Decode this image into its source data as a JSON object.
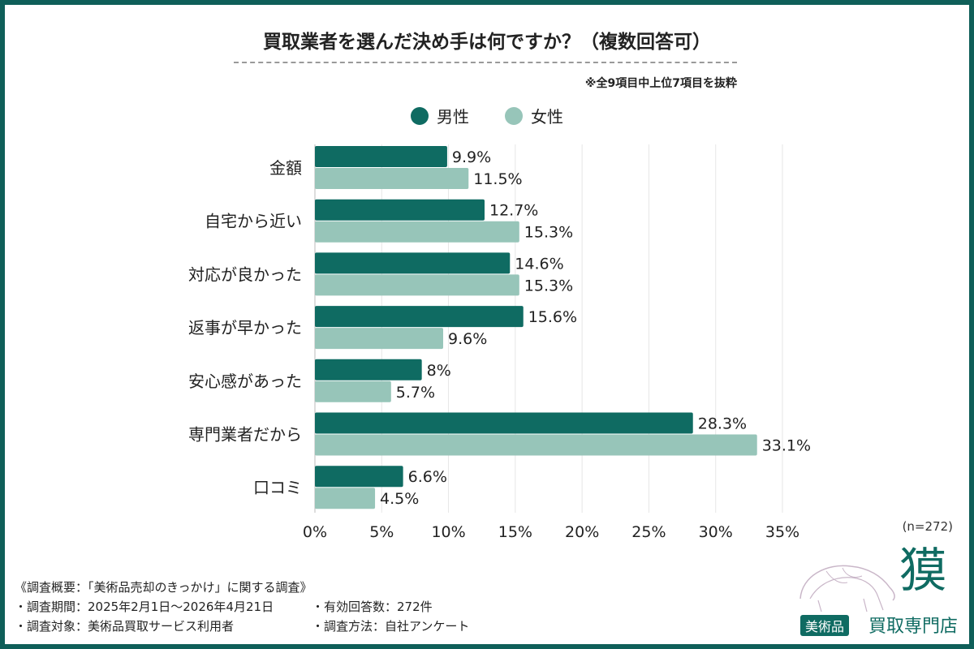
{
  "title": "買取業者を選んだ決め手は何ですか？（複数回答可）",
  "note": "※全9項目中上位7項目を抜粋",
  "sample": "(n=272)",
  "colors": {
    "male": "#0f6b62",
    "female": "#97c5b9",
    "frame": "#0f5f59"
  },
  "survey": {
    "heading": "《調査概要：「美術品売却のきっかけ」に関する調査》",
    "period": "・調査期間：2025年2月1日〜2026年4月21日",
    "responses": "・有効回答数：272件",
    "target": "・調査対象：美術品買取サービス利用者",
    "method": "・調査方法：自社アンケート"
  },
  "logo": {
    "kanji": "獏",
    "badge": "美術品",
    "text": "買取専門店"
  },
  "chart_data": {
    "type": "bar",
    "orientation": "horizontal",
    "title": "買取業者を選んだ決め手は何ですか？（複数回答可）",
    "categories": [
      "金額",
      "自宅から近い",
      "対応が良かった",
      "返事が早かった",
      "安心感があった",
      "専門業者だから",
      "口コミ"
    ],
    "series": [
      {
        "name": "男性",
        "values": [
          9.9,
          12.7,
          14.6,
          15.6,
          8,
          28.3,
          6.6
        ],
        "labels": [
          "9.9%",
          "12.7%",
          "14.6%",
          "15.6%",
          "8%",
          "28.3%",
          "6.6%"
        ]
      },
      {
        "name": "女性",
        "values": [
          11.5,
          15.3,
          15.3,
          9.6,
          5.7,
          33.1,
          4.5
        ],
        "labels": [
          "11.5%",
          "15.3%",
          "15.3%",
          "9.6%",
          "5.7%",
          "33.1%",
          "4.5%"
        ]
      }
    ],
    "xlim": [
      0,
      35
    ],
    "xticks": [
      0,
      5,
      10,
      15,
      20,
      25,
      30,
      35
    ],
    "xtick_labels": [
      "0%",
      "5%",
      "10%",
      "15%",
      "20%",
      "25%",
      "30%",
      "35%"
    ],
    "grid": true,
    "legend": "top-center"
  }
}
